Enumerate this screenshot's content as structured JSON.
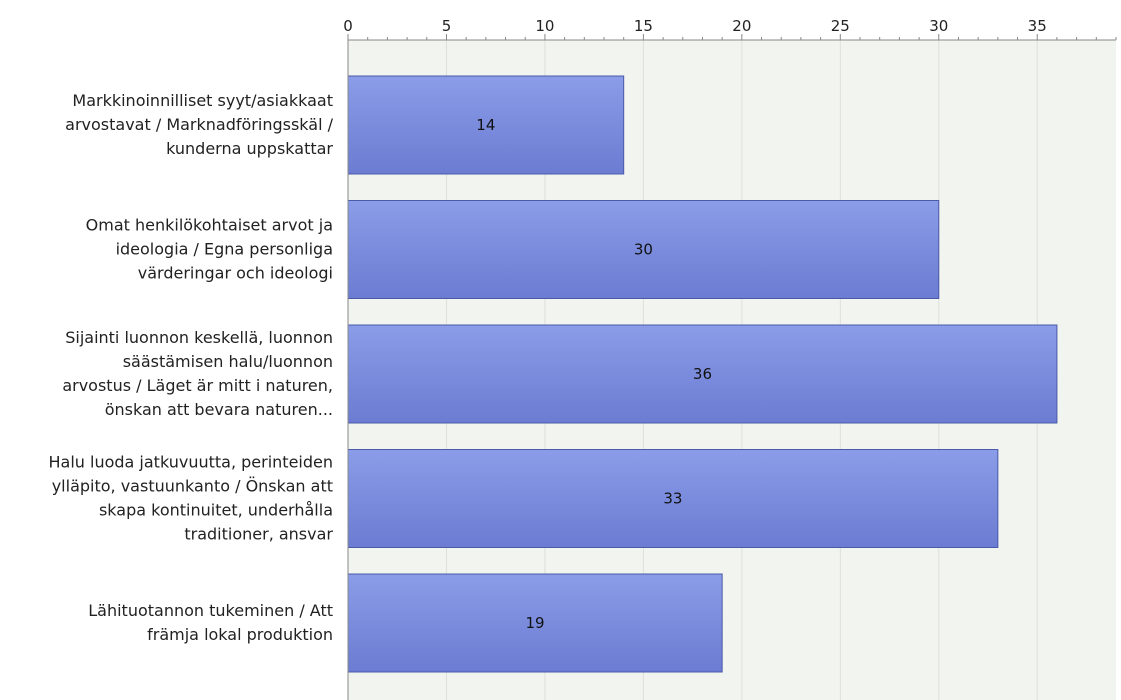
{
  "chart_data": {
    "type": "bar",
    "orientation": "horizontal",
    "categories": [
      [
        "Markkinoinnilliset syyt/asiakkaat",
        "arvostavat / Marknadföringsskäl /",
        "kunderna uppskattar"
      ],
      [
        "Omat henkilökohtaiset arvot ja",
        "ideologia / Egna personliga",
        "värderingar och ideologi"
      ],
      [
        "Sijainti luonnon keskellä, luonnon",
        "säästämisen halu/luonnon",
        "arvostus / Läget är mitt i naturen,",
        "önskan att bevara naturen..."
      ],
      [
        "Halu luoda jatkuvuutta, perinteiden",
        "ylläpito, vastuunkanto / Önskan att",
        "skapa kontinuitet, underhålla",
        "traditioner, ansvar"
      ],
      [
        "Lähituotannon tukeminen / Att",
        "främja lokal produktion"
      ]
    ],
    "values": [
      14,
      30,
      36,
      33,
      19
    ],
    "xlim": [
      0,
      39
    ],
    "xticks": [
      0,
      5,
      10,
      15,
      20,
      25,
      30,
      35
    ],
    "axis_position": "top",
    "grid": true,
    "data_labels": true,
    "colors": {
      "bar_top": "#8b9ce8",
      "bar_bottom": "#6b7cd2",
      "bar_edge": "#4a5aa8",
      "plot_bg": "#f2f4f0",
      "grid": "#dde0da",
      "axis": "#888888"
    }
  }
}
